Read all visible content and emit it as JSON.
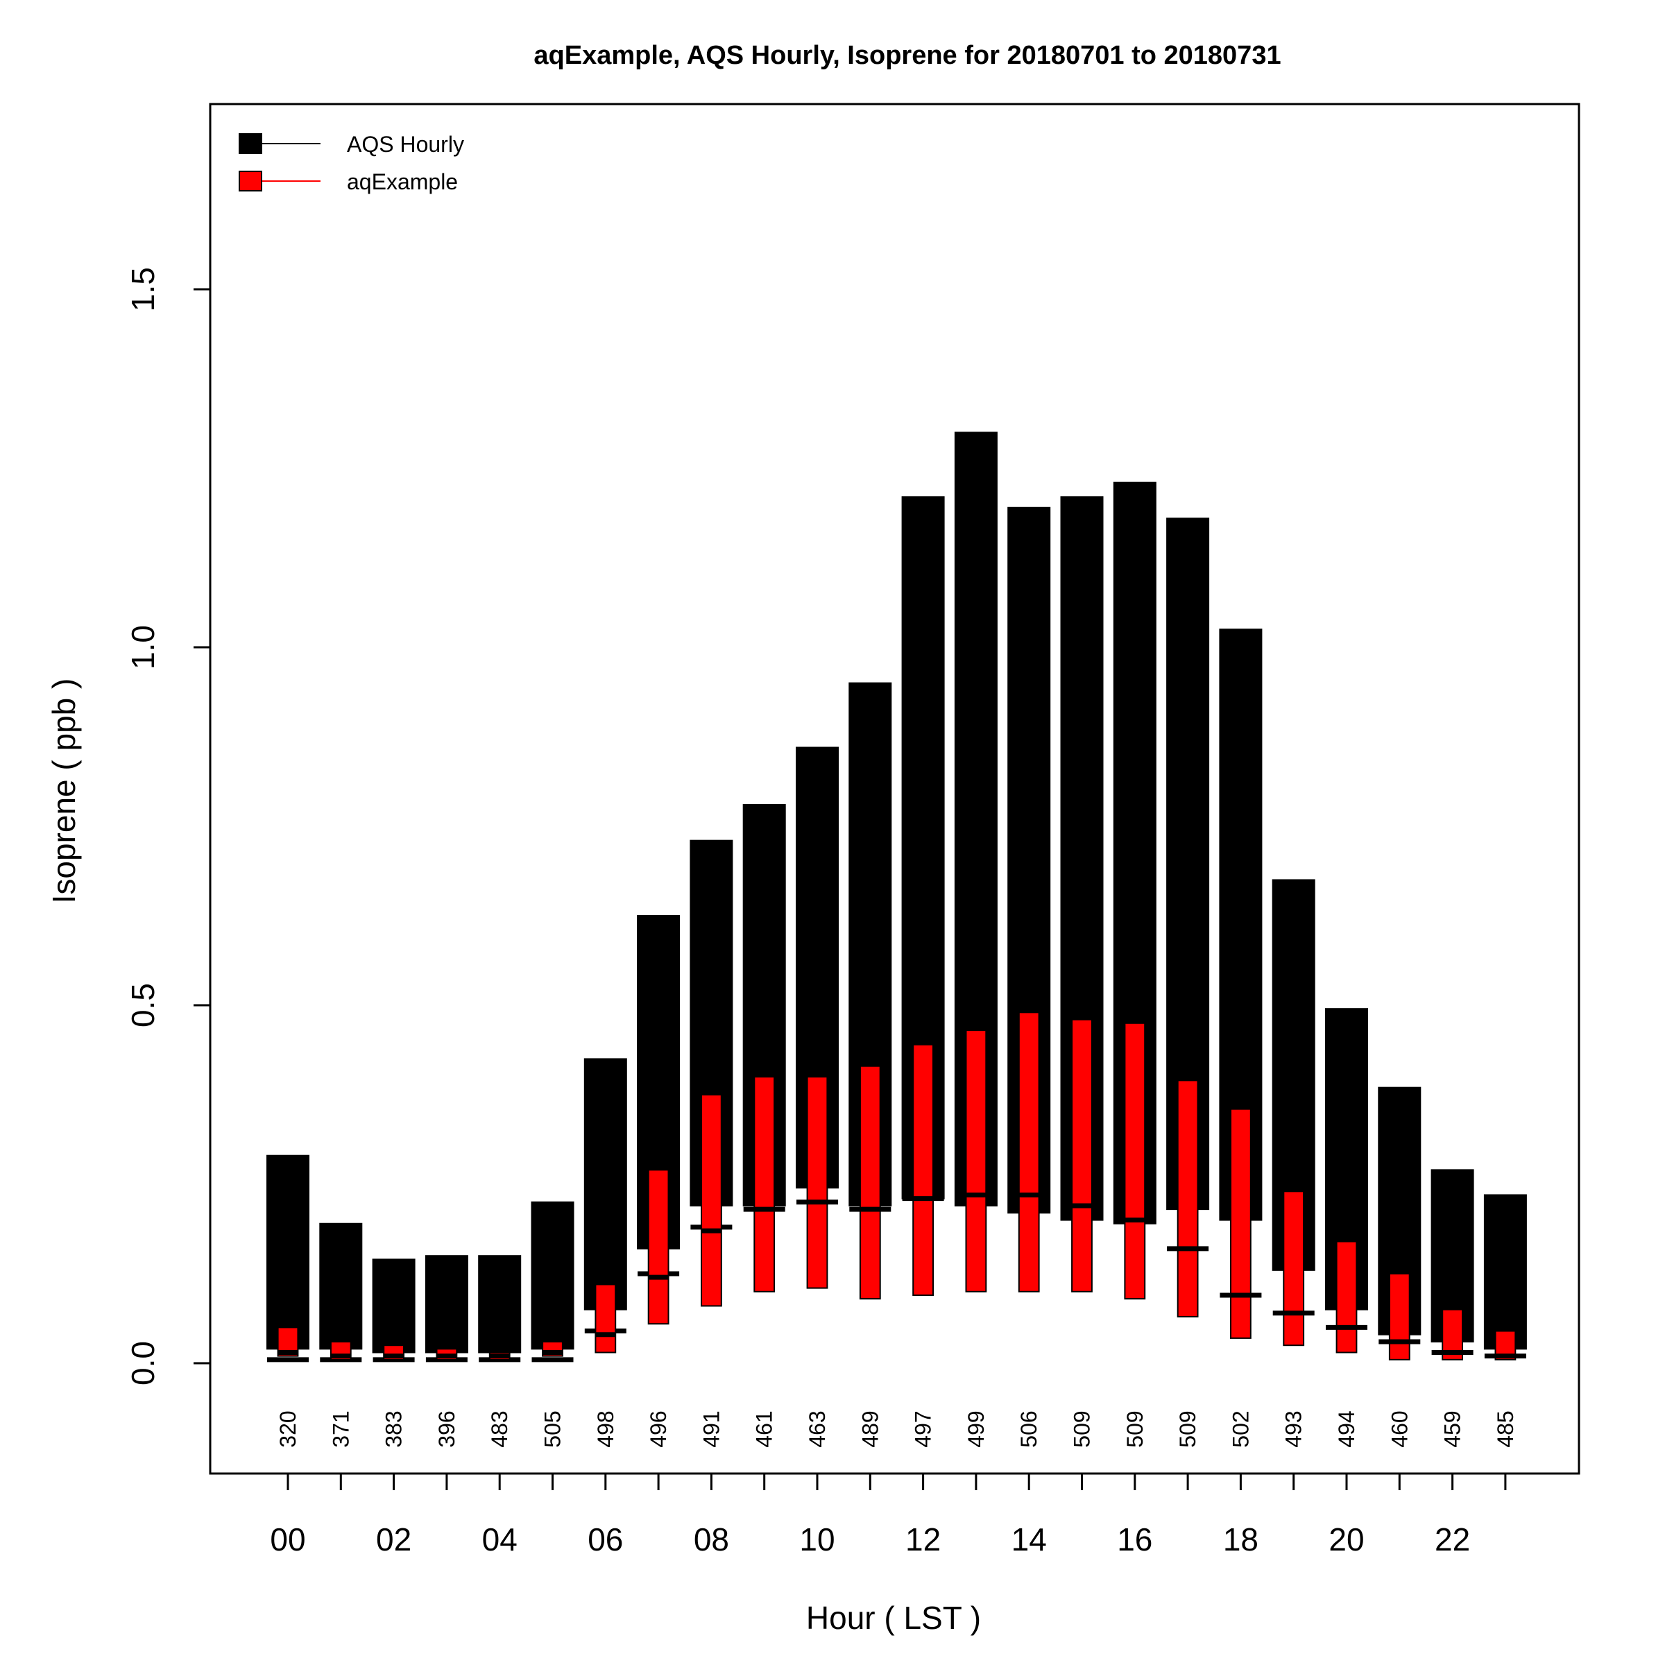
{
  "chart_data": {
    "type": "bar",
    "title": "aqExample, AQS Hourly, Isoprene for 20180701 to 20180731",
    "xlabel": "Hour ( LST )",
    "ylabel": "Isoprene ( ppb )",
    "ylim": [
      -0.15,
      1.75
    ],
    "y_ticks": [
      "0.0",
      "0.5",
      "1.0",
      "1.5"
    ],
    "y_tick_values": [
      0.0,
      0.5,
      1.0,
      1.5
    ],
    "x_tick_labels": [
      "00",
      "02",
      "04",
      "06",
      "08",
      "10",
      "12",
      "14",
      "16",
      "18",
      "20",
      "22"
    ],
    "hours": [
      0,
      1,
      2,
      3,
      4,
      5,
      6,
      7,
      8,
      9,
      10,
      11,
      12,
      13,
      14,
      15,
      16,
      17,
      18,
      19,
      20,
      21,
      22,
      23
    ],
    "counts": [
      "320",
      "371",
      "383",
      "396",
      "483",
      "505",
      "498",
      "496",
      "491",
      "461",
      "463",
      "489",
      "497",
      "499",
      "506",
      "509",
      "509",
      "509",
      "502",
      "493",
      "494",
      "460",
      "459",
      "485"
    ],
    "legend": [
      {
        "label": "AQS Hourly",
        "color": "#000000"
      },
      {
        "label": "aqExample",
        "color": "#ff0000"
      }
    ],
    "series": [
      {
        "name": "AQS Hourly",
        "color": "#000000",
        "q1": [
          0.02,
          0.02,
          0.015,
          0.015,
          0.015,
          0.02,
          0.075,
          0.16,
          0.22,
          0.22,
          0.245,
          0.22,
          0.23,
          0.22,
          0.21,
          0.2,
          0.195,
          0.215,
          0.2,
          0.13,
          0.075,
          0.04,
          0.03,
          0.02
        ],
        "q3": [
          0.29,
          0.195,
          0.145,
          0.15,
          0.15,
          0.225,
          0.425,
          0.625,
          0.73,
          0.78,
          0.86,
          0.95,
          1.21,
          1.3,
          1.195,
          1.21,
          1.23,
          1.18,
          1.025,
          0.675,
          0.495,
          0.385,
          0.27,
          0.235
        ],
        "median": [
          0.005,
          0.005,
          0.005,
          0.005,
          0.005,
          0.005,
          0.045,
          0.125,
          0.19,
          0.215,
          0.225,
          0.215,
          0.23,
          0.235,
          0.235,
          0.22,
          0.2,
          0.16,
          0.095,
          0.07,
          0.05,
          0.03,
          0.015,
          0.01
        ]
      },
      {
        "name": "aqExample",
        "color": "#ff0000",
        "q1": [
          0.01,
          0.005,
          0.005,
          0.005,
          0.005,
          0.01,
          0.015,
          0.055,
          0.08,
          0.1,
          0.105,
          0.09,
          0.095,
          0.1,
          0.1,
          0.1,
          0.09,
          0.065,
          0.035,
          0.025,
          0.015,
          0.005,
          0.005,
          0.005
        ],
        "q3": [
          0.05,
          0.03,
          0.025,
          0.02,
          0.015,
          0.03,
          0.11,
          0.27,
          0.375,
          0.4,
          0.4,
          0.415,
          0.445,
          0.465,
          0.49,
          0.48,
          0.475,
          0.395,
          0.355,
          0.24,
          0.17,
          0.125,
          0.075,
          0.045
        ],
        "median": [
          0.015,
          0.01,
          0.01,
          0.01,
          0.01,
          0.015,
          0.04,
          0.12,
          0.185,
          0.215,
          0.225,
          0.215,
          0.23,
          0.235,
          0.235,
          0.22,
          0.2,
          0.16,
          0.095,
          0.07,
          0.05,
          0.03,
          0.015,
          0.01
        ]
      }
    ]
  }
}
